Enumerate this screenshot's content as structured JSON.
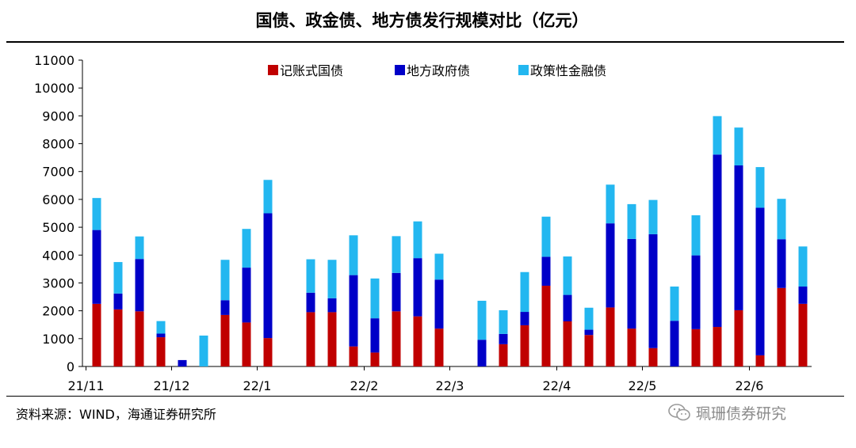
{
  "title": "国债、政金债、地方债发行规模对比（亿元）",
  "source": "资料来源：WIND，海通证券研究所",
  "watermark": "珮珊债券研究",
  "colors": {
    "red": "#C00000",
    "blue": "#0000C8",
    "cyan": "#23B7F0"
  },
  "chart_data": {
    "type": "bar",
    "stacked": true,
    "ylim": [
      0,
      11000
    ],
    "yticks": [
      0,
      1000,
      2000,
      3000,
      4000,
      5000,
      6000,
      7000,
      8000,
      9000,
      10000,
      11000
    ],
    "xtick_labels": [
      {
        "label": "21/11",
        "at": 0
      },
      {
        "label": "21/12",
        "at": 4
      },
      {
        "label": "22/1",
        "at": 8
      },
      {
        "label": "22/2",
        "at": 13
      },
      {
        "label": "22/3",
        "at": 17
      },
      {
        "label": "22/4",
        "at": 22
      },
      {
        "label": "22/5",
        "at": 26
      },
      {
        "label": "22/6",
        "at": 31
      }
    ],
    "legend_position": "top",
    "series": [
      {
        "name": "记账式国债",
        "color": "#C00000",
        "values": [
          2250,
          2050,
          1980,
          1050,
          0,
          0,
          1850,
          1580,
          1020,
          null,
          1950,
          1950,
          720,
          500,
          1980,
          1800,
          1360,
          null,
          0,
          800,
          1480,
          2900,
          1620,
          1130,
          2120,
          1360,
          660,
          0,
          1340,
          1420,
          2020,
          400,
          2820,
          2250
        ]
      },
      {
        "name": "地方政府债",
        "color": "#0000C8",
        "values": [
          2650,
          570,
          1880,
          130,
          230,
          0,
          530,
          1970,
          4480,
          null,
          700,
          500,
          2560,
          1230,
          1380,
          2090,
          1760,
          null,
          960,
          370,
          480,
          1040,
          950,
          190,
          3020,
          3220,
          4090,
          1640,
          2650,
          6190,
          5200,
          5300,
          1750,
          620
        ]
      },
      {
        "name": "政策性金融债",
        "color": "#23B7F0",
        "values": [
          1150,
          1130,
          810,
          450,
          0,
          1110,
          1450,
          1390,
          1200,
          null,
          1200,
          1380,
          1430,
          1430,
          1320,
          1320,
          930,
          null,
          1400,
          850,
          1430,
          1440,
          1380,
          790,
          1390,
          1250,
          1230,
          1230,
          1440,
          1380,
          1360,
          1460,
          1450,
          1440
        ]
      }
    ]
  }
}
